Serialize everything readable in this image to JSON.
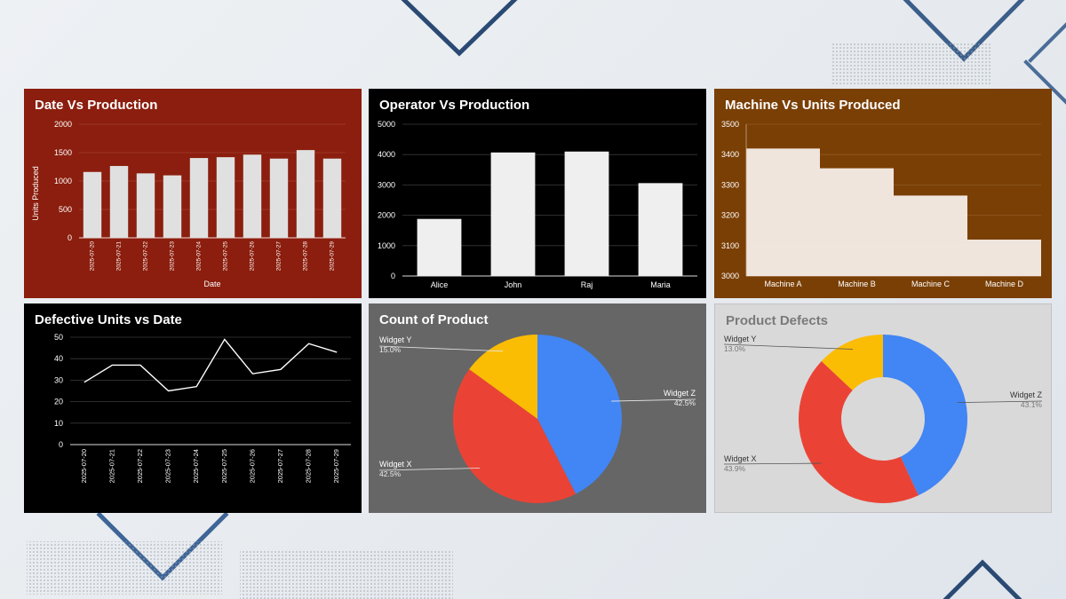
{
  "colors": {
    "widget_z": "#4285f4",
    "widget_x": "#ea4335",
    "widget_y": "#fbbc04"
  },
  "chart_data": [
    {
      "type": "bar",
      "title": "Date Vs Production",
      "xlabel": "Date",
      "ylabel": "Units Produced",
      "categories": [
        "2025-07-20",
        "2025-07-21",
        "2025-07-22",
        "2025-07-23",
        "2025-07-24",
        "2025-07-25",
        "2025-07-26",
        "2025-07-27",
        "2025-07-28",
        "2025-07-29"
      ],
      "values": [
        1160,
        1265,
        1135,
        1100,
        1405,
        1420,
        1465,
        1395,
        1545,
        1395
      ],
      "ylim": [
        0,
        2000
      ],
      "yticks": [
        "0",
        "500",
        "1000",
        "1500",
        "2000"
      ],
      "grid": true,
      "background": "#8b1e0e",
      "bar_color": "#e0e0e0"
    },
    {
      "type": "bar",
      "title": "Operator Vs Production",
      "xlabel": "",
      "ylabel": "",
      "categories": [
        "Alice",
        "John",
        "Raj",
        "Maria"
      ],
      "values": [
        1880,
        4070,
        4100,
        3060
      ],
      "ylim": [
        0,
        5000
      ],
      "yticks": [
        "0",
        "1000",
        "2000",
        "3000",
        "4000",
        "5000"
      ],
      "grid": true,
      "background": "#000000",
      "bar_color": "#efefef"
    },
    {
      "type": "area",
      "title": "Machine Vs Units Produced",
      "xlabel": "",
      "ylabel": "",
      "categories": [
        "Machine A",
        "Machine B",
        "Machine C",
        "Machine D"
      ],
      "values": [
        3420,
        3355,
        3265,
        3120
      ],
      "ylim": [
        3000,
        3500
      ],
      "yticks": [
        "3000",
        "3100",
        "3200",
        "3300",
        "3400",
        "3500"
      ],
      "grid": true,
      "background": "#7a3f05",
      "fill_color": "#f5ece6"
    },
    {
      "type": "line",
      "title": "Defective Units vs Date",
      "xlabel": "",
      "ylabel": "",
      "categories": [
        "2025-07-20",
        "2025-07-21",
        "2025-07-22",
        "2025-07-23",
        "2025-07-24",
        "2025-07-25",
        "2025-07-26",
        "2025-07-27",
        "2025-07-28",
        "2025-07-29"
      ],
      "values": [
        29,
        37,
        37,
        25,
        27,
        49,
        33,
        35,
        47,
        43
      ],
      "ylim": [
        0,
        50
      ],
      "yticks": [
        "0",
        "10",
        "20",
        "30",
        "40",
        "50"
      ],
      "grid": true,
      "background": "#000000",
      "line_color": "#ffffff"
    },
    {
      "type": "pie",
      "title": "Count of Product",
      "slices": [
        {
          "label": "Widget Z",
          "value": 42.5,
          "pct": "42.5%"
        },
        {
          "label": "Widget X",
          "value": 42.5,
          "pct": "42.5%"
        },
        {
          "label": "Widget Y",
          "value": 15.0,
          "pct": "15.0%"
        }
      ],
      "background": "#666666"
    },
    {
      "type": "pie",
      "title": "Product Defects",
      "donut": true,
      "slices": [
        {
          "label": "Widget Z",
          "value": 43.1,
          "pct": "43.1%"
        },
        {
          "label": "Widget X",
          "value": 43.9,
          "pct": "43.9%"
        },
        {
          "label": "Widget Y",
          "value": 13.0,
          "pct": "13.0%"
        }
      ],
      "background": "#d9d9d9"
    }
  ]
}
